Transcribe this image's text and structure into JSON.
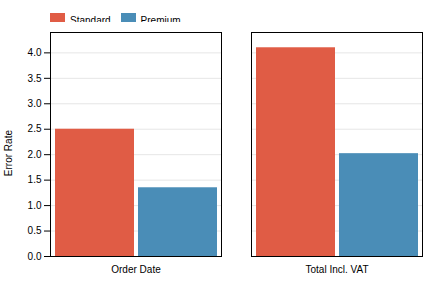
{
  "chart_data": {
    "type": "bar",
    "categories": [
      "Order Date",
      "Total Incl. VAT"
    ],
    "series": [
      {
        "name": "Standard",
        "color": "#E05C45",
        "values": [
          2.5,
          4.1
        ]
      },
      {
        "name": "Premium",
        "color": "#4A8DB7",
        "values": [
          1.35,
          2.02
        ]
      }
    ],
    "ylabel": "Error Rate",
    "ylim": [
      0,
      4.4
    ],
    "yticks": [
      {
        "value": 0,
        "label": "0.0"
      },
      0.5,
      {
        "value": 1,
        "label": "1.0"
      },
      1.5,
      {
        "value": 2,
        "label": "2.0"
      },
      2.5,
      {
        "value": 3,
        "label": "3.0"
      },
      3.5,
      {
        "value": 4,
        "label": "4.0"
      }
    ],
    "grid": true,
    "legend": "upper left"
  }
}
